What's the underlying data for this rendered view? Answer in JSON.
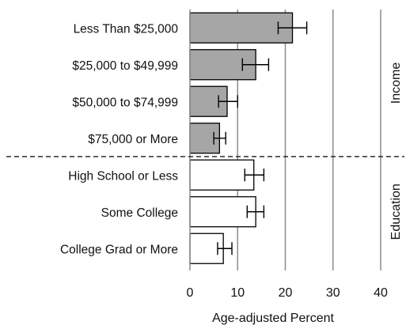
{
  "chart_data": {
    "type": "bar",
    "orientation": "horizontal",
    "xlabel": "Age-adjusted Percent",
    "xlim": [
      0,
      40
    ],
    "xticks": [
      0,
      10,
      20,
      30,
      40
    ],
    "grid": "vertical",
    "groups": [
      {
        "name": "Income",
        "fill": "#a6a6a6",
        "bars": [
          {
            "category": "Less Than $25,000",
            "value": 21.5,
            "err_low": 18.5,
            "err_high": 24.5
          },
          {
            "category": "$25,000 to $49,999",
            "value": 13.8,
            "err_low": 11.0,
            "err_high": 16.5
          },
          {
            "category": "$50,000 to $74,999",
            "value": 7.8,
            "err_low": 6.0,
            "err_high": 10.0
          },
          {
            "category": "$75,000 or More",
            "value": 6.2,
            "err_low": 5.0,
            "err_high": 7.5
          }
        ]
      },
      {
        "name": "Education",
        "fill": "#ffffff",
        "bars": [
          {
            "category": "High School or Less",
            "value": 13.4,
            "err_low": 11.5,
            "err_high": 15.5
          },
          {
            "category": "Some College",
            "value": 13.8,
            "err_low": 12.0,
            "err_high": 15.5
          },
          {
            "category": "College Grad or More",
            "value": 7.0,
            "err_low": 5.8,
            "err_high": 8.8
          }
        ]
      }
    ]
  }
}
